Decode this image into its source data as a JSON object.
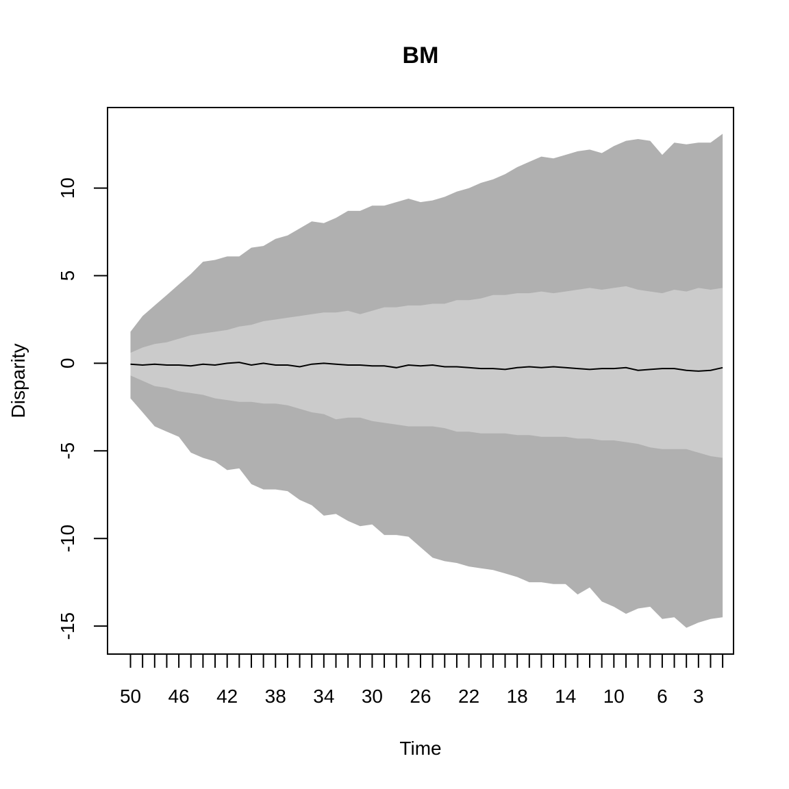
{
  "chart_data": {
    "type": "area",
    "title": "BM",
    "xlabel": "Time",
    "ylabel": "Disparity",
    "x": [
      50,
      49,
      48,
      47,
      46,
      45,
      44,
      43,
      42,
      41,
      40,
      39,
      38,
      37,
      36,
      35,
      34,
      33,
      32,
      31,
      30,
      29,
      28,
      27,
      26,
      25,
      24,
      23,
      22,
      21,
      20,
      19,
      18,
      17,
      16,
      15,
      14,
      13,
      12,
      11,
      10,
      9,
      8,
      7,
      6,
      5,
      4,
      3,
      2,
      1
    ],
    "xlim": [
      51.9,
      0.1
    ],
    "ylim": [
      -16.6,
      14.6
    ],
    "x_reversed": true,
    "x_ticks": [
      50,
      49,
      48,
      47,
      46,
      45,
      44,
      43,
      42,
      41,
      40,
      39,
      38,
      37,
      36,
      35,
      34,
      33,
      32,
      31,
      30,
      29,
      28,
      27,
      26,
      25,
      24,
      23,
      22,
      21,
      20,
      19,
      18,
      17,
      16,
      15,
      14,
      13,
      12,
      11,
      10,
      9,
      8,
      7,
      6,
      5,
      4,
      3,
      2,
      1
    ],
    "x_tick_labels": [
      {
        "x": 50,
        "label": "50"
      },
      {
        "x": 46,
        "label": "46"
      },
      {
        "x": 42,
        "label": "42"
      },
      {
        "x": 38,
        "label": "38"
      },
      {
        "x": 34,
        "label": "34"
      },
      {
        "x": 30,
        "label": "30"
      },
      {
        "x": 26,
        "label": "26"
      },
      {
        "x": 22,
        "label": "22"
      },
      {
        "x": 18,
        "label": "18"
      },
      {
        "x": 14,
        "label": "14"
      },
      {
        "x": 10,
        "label": "10"
      },
      {
        "x": 6,
        "label": "6"
      },
      {
        "x": 3,
        "label": "3"
      }
    ],
    "y_ticks": [
      {
        "y": 10,
        "label": "10"
      },
      {
        "y": 5,
        "label": "5"
      },
      {
        "y": 0,
        "label": "0"
      },
      {
        "y": -5,
        "label": "-5"
      },
      {
        "y": -10,
        "label": "-10"
      },
      {
        "y": -15,
        "label": "-15"
      }
    ],
    "series": [
      {
        "role": "outer-band",
        "color": "#b0b0b0",
        "upper": [
          1.8,
          2.7,
          3.3,
          3.9,
          4.5,
          5.1,
          5.8,
          5.9,
          6.1,
          6.1,
          6.6,
          6.7,
          7.1,
          7.3,
          7.7,
          8.1,
          8.0,
          8.3,
          8.7,
          8.7,
          9.0,
          9.0,
          9.2,
          9.4,
          9.2,
          9.3,
          9.5,
          9.8,
          10.0,
          10.3,
          10.5,
          10.8,
          11.2,
          11.5,
          11.8,
          11.7,
          11.9,
          12.1,
          12.2,
          12.0,
          12.4,
          12.7,
          12.8,
          12.7,
          11.9,
          12.6,
          12.5,
          12.6,
          12.6,
          13.1
        ],
        "lower": [
          -2.0,
          -2.8,
          -3.6,
          -3.9,
          -4.2,
          -5.1,
          -5.4,
          -5.6,
          -6.1,
          -6.0,
          -6.9,
          -7.2,
          -7.2,
          -7.3,
          -7.8,
          -8.1,
          -8.7,
          -8.6,
          -9.0,
          -9.3,
          -9.2,
          -9.8,
          -9.8,
          -9.9,
          -10.5,
          -11.1,
          -11.3,
          -11.4,
          -11.6,
          -11.7,
          -11.8,
          -12.0,
          -12.2,
          -12.5,
          -12.5,
          -12.6,
          -12.6,
          -13.2,
          -12.8,
          -13.6,
          -13.9,
          -14.3,
          -14.0,
          -13.9,
          -14.6,
          -14.5,
          -15.1,
          -14.8,
          -14.6,
          -14.5
        ]
      },
      {
        "role": "inner-band",
        "color": "#cbcbcb",
        "upper": [
          0.6,
          0.9,
          1.1,
          1.2,
          1.4,
          1.6,
          1.7,
          1.8,
          1.9,
          2.1,
          2.2,
          2.4,
          2.5,
          2.6,
          2.7,
          2.8,
          2.9,
          2.9,
          3.0,
          2.8,
          3.0,
          3.2,
          3.2,
          3.3,
          3.3,
          3.4,
          3.4,
          3.6,
          3.6,
          3.7,
          3.9,
          3.9,
          4.0,
          4.0,
          4.1,
          4.0,
          4.1,
          4.2,
          4.3,
          4.2,
          4.3,
          4.4,
          4.2,
          4.1,
          4.0,
          4.2,
          4.1,
          4.3,
          4.2,
          4.3
        ],
        "lower": [
          -0.7,
          -1.0,
          -1.3,
          -1.4,
          -1.6,
          -1.7,
          -1.8,
          -2.0,
          -2.1,
          -2.2,
          -2.2,
          -2.3,
          -2.3,
          -2.4,
          -2.6,
          -2.8,
          -2.9,
          -3.2,
          -3.1,
          -3.1,
          -3.3,
          -3.4,
          -3.5,
          -3.6,
          -3.6,
          -3.6,
          -3.7,
          -3.9,
          -3.9,
          -4.0,
          -4.0,
          -4.0,
          -4.1,
          -4.1,
          -4.2,
          -4.2,
          -4.2,
          -4.3,
          -4.3,
          -4.4,
          -4.4,
          -4.5,
          -4.6,
          -4.8,
          -4.9,
          -4.9,
          -4.9,
          -5.1,
          -5.3,
          -5.4
        ]
      },
      {
        "role": "median-line",
        "color": "#000000",
        "values": [
          -0.05,
          -0.1,
          -0.05,
          -0.1,
          -0.1,
          -0.15,
          -0.05,
          -0.1,
          0.0,
          0.05,
          -0.1,
          0.0,
          -0.1,
          -0.1,
          -0.2,
          -0.05,
          0.0,
          -0.05,
          -0.1,
          -0.1,
          -0.15,
          -0.15,
          -0.25,
          -0.1,
          -0.15,
          -0.1,
          -0.2,
          -0.2,
          -0.25,
          -0.3,
          -0.3,
          -0.35,
          -0.25,
          -0.2,
          -0.25,
          -0.2,
          -0.25,
          -0.3,
          -0.35,
          -0.3,
          -0.3,
          -0.25,
          -0.4,
          -0.35,
          -0.3,
          -0.3,
          -0.4,
          -0.45,
          -0.4,
          -0.25
        ]
      }
    ],
    "grid": false,
    "legend": "none"
  }
}
